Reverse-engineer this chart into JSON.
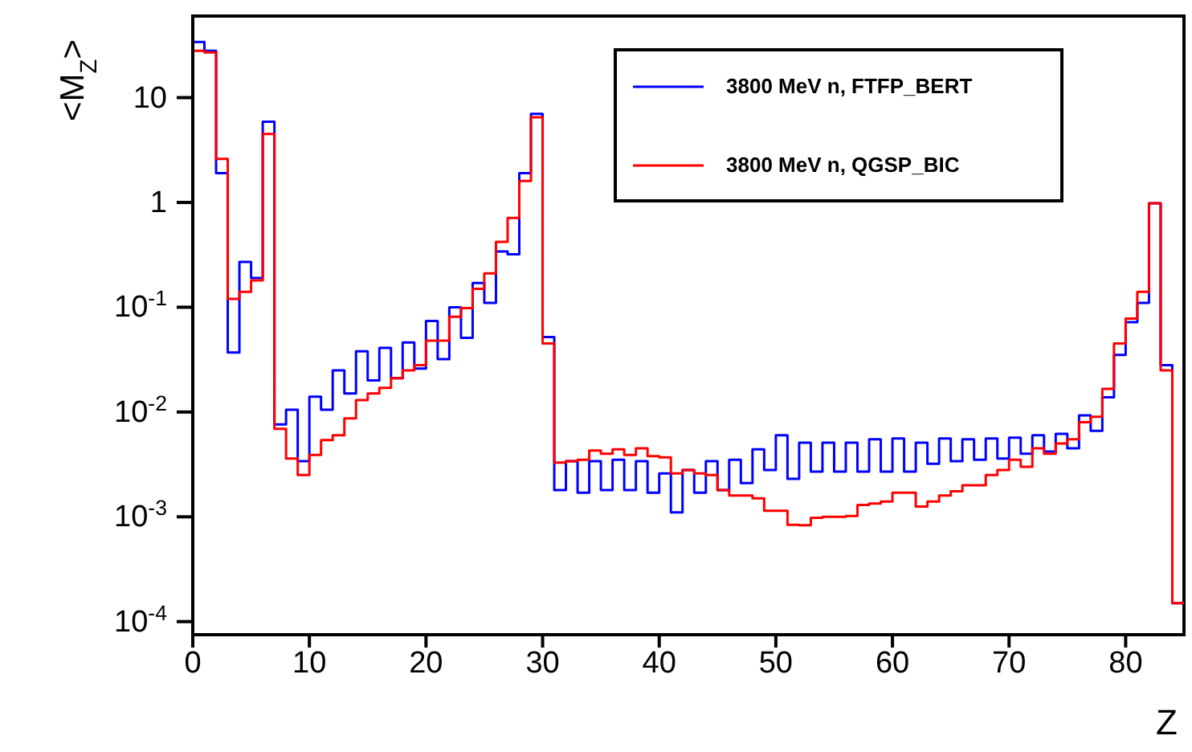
{
  "chart_data": {
    "type": "histogram",
    "xlabel": "Z",
    "ylabel": "<M$_{Z}$>",
    "bins": [
      0,
      1,
      2,
      3,
      4,
      5,
      6,
      7,
      8,
      9,
      10,
      11,
      12,
      13,
      14,
      15,
      16,
      17,
      18,
      19,
      20,
      21,
      22,
      23,
      24,
      25,
      26,
      27,
      28,
      29,
      30,
      31,
      32,
      33,
      34,
      35,
      36,
      37,
      38,
      39,
      40,
      41,
      42,
      43,
      44,
      45,
      46,
      47,
      48,
      49,
      50,
      51,
      52,
      53,
      54,
      55,
      56,
      57,
      58,
      59,
      60,
      61,
      62,
      63,
      64,
      65,
      66,
      67,
      68,
      69,
      70,
      71,
      72,
      73,
      74,
      75,
      76,
      77,
      78,
      79,
      80,
      81,
      82,
      83,
      84,
      85
    ],
    "series": [
      {
        "name": "3800 MeV n, FTFP_BERT",
        "color": "#0000ff",
        "values": [
          34,
          28,
          1.9,
          0.037,
          0.27,
          0.19,
          5.9,
          0.0076,
          0.0105,
          0.0034,
          0.014,
          0.0105,
          0.025,
          0.015,
          0.038,
          0.02,
          0.041,
          0.021,
          0.046,
          0.026,
          0.074,
          0.032,
          0.1,
          0.051,
          0.17,
          0.11,
          0.34,
          0.32,
          1.9,
          7.0,
          0.052,
          0.0018,
          0.0034,
          0.0017,
          0.0034,
          0.0018,
          0.0035,
          0.0018,
          0.0034,
          0.0017,
          0.0026,
          0.0011,
          0.0028,
          0.0017,
          0.0034,
          0.0018,
          0.0035,
          0.0021,
          0.0044,
          0.0028,
          0.006,
          0.0023,
          0.0051,
          0.0027,
          0.0051,
          0.0027,
          0.0051,
          0.0027,
          0.0055,
          0.0027,
          0.0056,
          0.0027,
          0.0051,
          0.0032,
          0.0056,
          0.0034,
          0.0055,
          0.0035,
          0.0056,
          0.0036,
          0.0057,
          0.004,
          0.006,
          0.0042,
          0.0062,
          0.0045,
          0.0093,
          0.0066,
          0.0138,
          0.035,
          0.072,
          0.11,
          0.98,
          0.028,
          0.00015
        ]
      },
      {
        "name": "3800 MeV n, QGSP_BIC",
        "color": "#ff0000",
        "values": [
          28,
          27,
          2.6,
          0.12,
          0.14,
          0.18,
          4.5,
          0.0069,
          0.0036,
          0.0025,
          0.0039,
          0.0054,
          0.006,
          0.0087,
          0.013,
          0.015,
          0.017,
          0.021,
          0.025,
          0.028,
          0.048,
          0.048,
          0.081,
          0.098,
          0.15,
          0.21,
          0.42,
          0.71,
          1.6,
          6.5,
          0.045,
          0.0033,
          0.0034,
          0.0035,
          0.0043,
          0.004,
          0.0044,
          0.0039,
          0.0045,
          0.0038,
          0.0037,
          0.0026,
          0.0028,
          0.0026,
          0.0025,
          0.0018,
          0.0016,
          0.0016,
          0.0015,
          0.00114,
          0.00114,
          0.00084,
          0.00083,
          0.00098,
          0.001,
          0.001,
          0.00102,
          0.0013,
          0.00134,
          0.0014,
          0.0017,
          0.0017,
          0.00125,
          0.0014,
          0.0016,
          0.00175,
          0.002,
          0.002,
          0.0025,
          0.0028,
          0.0035,
          0.003,
          0.0045,
          0.004,
          0.005,
          0.0055,
          0.008,
          0.009,
          0.0166,
          0.045,
          0.078,
          0.14,
          0.98,
          0.025,
          0.00015
        ]
      }
    ],
    "xlim": [
      0,
      85
    ],
    "xticks": [
      0,
      10,
      20,
      30,
      40,
      50,
      60,
      70,
      80
    ],
    "ylim": [
      7.5e-05,
      60
    ],
    "yticks": [
      {
        "value": 0.0001,
        "label": "10$^{-4}$"
      },
      {
        "value": 0.001,
        "label": "10$^{-3}$"
      },
      {
        "value": 0.01,
        "label": "10$^{-2}$"
      },
      {
        "value": 0.1,
        "label": "10$^{-1}$"
      },
      1,
      10
    ],
    "log": "y",
    "legend": "top right",
    "line_style": "solid",
    "marker": "none"
  }
}
